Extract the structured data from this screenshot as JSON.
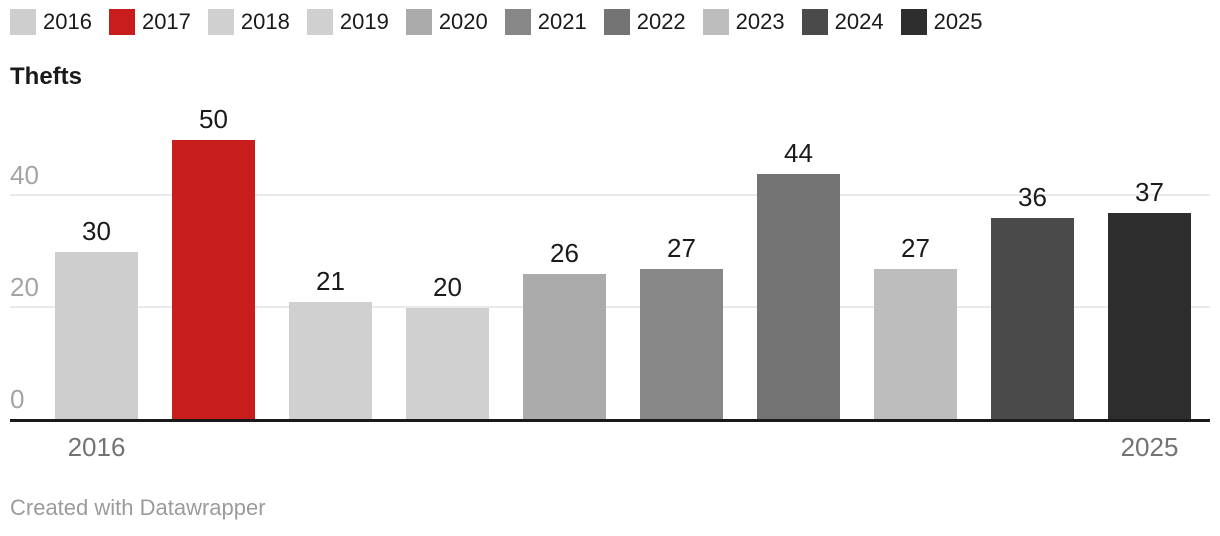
{
  "title": "Thefts",
  "attribution": "Created with Datawrapper",
  "chart_data": {
    "type": "bar",
    "title": "Thefts",
    "categories": [
      "2016",
      "2017",
      "2018",
      "2019",
      "2020",
      "2021",
      "2022",
      "2023",
      "2024",
      "2025"
    ],
    "values": [
      30,
      50,
      21,
      20,
      26,
      27,
      44,
      27,
      36,
      37
    ],
    "bar_colors": [
      "#cecece",
      "#c71e1d",
      "#d0d0d0",
      "#d0d0d0",
      "#ababab",
      "#878787",
      "#737373",
      "#bdbdbd",
      "#4a4a4a",
      "#2d2d2d"
    ],
    "highlighted_category": "2017",
    "highlight_color": "#c71e1d",
    "xlabel": "",
    "ylabel": "",
    "ylim": [
      0,
      50
    ],
    "yticks": [
      0,
      20,
      40
    ],
    "grid": true,
    "value_labels": true,
    "legend_position": "top",
    "x_tick_labels_shown": [
      "2016",
      "2025"
    ],
    "attribution": "Created with Datawrapper"
  },
  "colors": {
    "background": "#ffffff",
    "text_dark": "#1a1a1a",
    "ytick_label": "#a4a4a4",
    "xtick_label": "#737373",
    "gridline": "#eaeaea",
    "baseline": "#1a1a1a",
    "attribution_text": "#9b9b9b"
  }
}
